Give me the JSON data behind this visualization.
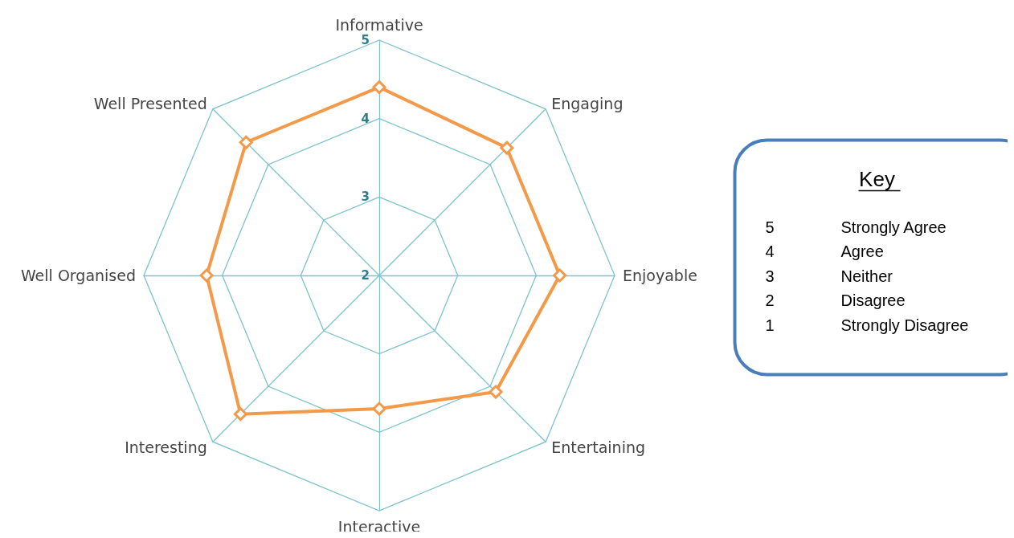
{
  "chart_data": {
    "type": "radar",
    "categories": [
      "Informative",
      "Engaging",
      "Enjoyable",
      "Entertaining",
      "Interactive",
      "Interesting",
      "Well Organised",
      "Well Presented"
    ],
    "series": [
      {
        "color": "#f39a4a",
        "values": [
          4.4,
          4.3,
          4.3,
          4.1,
          3.7,
          4.5,
          4.2,
          4.4
        ]
      }
    ],
    "ylim": [
      2,
      5
    ],
    "yticks": [
      2,
      3,
      4,
      5
    ],
    "marker": "diamond",
    "annotations": [
      "Key",
      "5 Strongly Agree",
      "4 Agree",
      "3 Neither",
      "2 Disagree",
      "1 Strongly Disagree"
    ]
  }
}
